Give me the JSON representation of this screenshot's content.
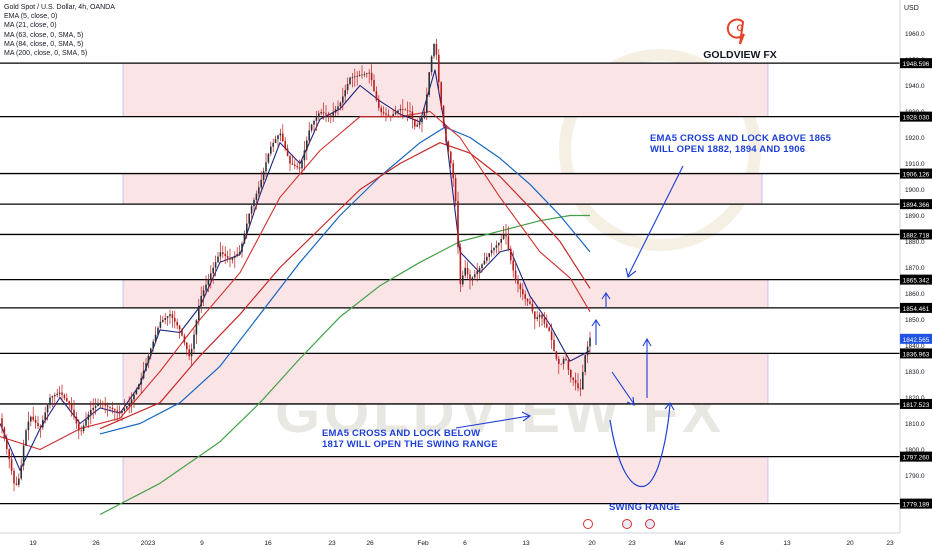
{
  "legend": {
    "title": "Gold Spot / U.S. Dollar, 4h, OANDA",
    "lines": [
      "EMA (5, close, 0)",
      "MA (21, close, 0)",
      "MA (63, close, 0, SMA, 5)",
      "MA (84, close, 0, SMA, 5)",
      "MA (200, close, 0, SMA, 5)"
    ]
  },
  "logo": {
    "text": "GOLDVIEW FX",
    "mark_text": "G",
    "color": "#e8402a"
  },
  "watermark": "GOLDVIEW FX",
  "annotations": {
    "upper": [
      "EMA5 CROSS AND LOCK ABOVE 1865",
      "WILL OPEN  1882, 1894 AND 1906"
    ],
    "lower": [
      "EMA5 CROSS AND LOCK BELOW",
      "1817 WILL OPEN THE SWING RANGE"
    ],
    "swing": "SWING RANGE"
  },
  "colors": {
    "ema5": "#1a237e",
    "ma21": "#d32f2f",
    "ma63": "#1565c0",
    "ma84": "#c62828",
    "ma200": "#43a047",
    "annotation": "#1e3fd6",
    "zone": "#fbe4e6",
    "zone_border": "#4a6cf7",
    "candle": "#b71c1c"
  },
  "chart_data": {
    "type": "candlestick",
    "symbol": "Gold Spot / U.S. Dollar",
    "timeframe": "4h",
    "source": "OANDA",
    "currency_label": "USD",
    "y_axis": {
      "min": 1774,
      "max": 1968,
      "ticks": [
        1790,
        1800,
        1810,
        1820,
        1830,
        1840,
        1850,
        1860,
        1870,
        1880,
        1890,
        1900,
        1910,
        1920,
        1930,
        1940,
        1950,
        1960
      ]
    },
    "x_ticks": [
      "19",
      "26",
      "2023",
      "9",
      "16",
      "23",
      "26",
      "Feb",
      "6",
      "13",
      "20",
      "23",
      "Mar",
      "6",
      "13",
      "20",
      "23"
    ],
    "levels": [
      1948.596,
      1928.03,
      1906.126,
      1894.366,
      1882.718,
      1865.342,
      1854.461,
      1836.963,
      1817.523,
      1797.26,
      1779.189
    ],
    "current_price": 1842.565,
    "zones": [
      [
        1948.596,
        1928.03
      ],
      [
        1906.126,
        1894.366
      ],
      [
        1865.342,
        1854.461
      ],
      [
        1836.963,
        1817.523
      ],
      [
        1797.26,
        1779.189
      ]
    ],
    "price_path": [
      [
        0,
        1812
      ],
      [
        5,
        1803
      ],
      [
        10,
        1795
      ],
      [
        15,
        1785
      ],
      [
        20,
        1790
      ],
      [
        25,
        1806
      ],
      [
        30,
        1813
      ],
      [
        40,
        1808
      ],
      [
        50,
        1820
      ],
      [
        60,
        1822
      ],
      [
        70,
        1817
      ],
      [
        80,
        1806
      ],
      [
        90,
        1815
      ],
      [
        100,
        1818
      ],
      [
        110,
        1816
      ],
      [
        120,
        1814
      ],
      [
        130,
        1818
      ],
      [
        140,
        1826
      ],
      [
        150,
        1838
      ],
      [
        160,
        1849
      ],
      [
        170,
        1852
      ],
      [
        180,
        1846
      ],
      [
        190,
        1835
      ],
      [
        200,
        1858
      ],
      [
        210,
        1867
      ],
      [
        220,
        1876
      ],
      [
        230,
        1873
      ],
      [
        240,
        1876
      ],
      [
        250,
        1892
      ],
      [
        260,
        1902
      ],
      [
        270,
        1916
      ],
      [
        280,
        1922
      ],
      [
        290,
        1910
      ],
      [
        300,
        1908
      ],
      [
        310,
        1924
      ],
      [
        320,
        1930
      ],
      [
        330,
        1928
      ],
      [
        340,
        1933
      ],
      [
        350,
        1943
      ],
      [
        360,
        1944
      ],
      [
        370,
        1945
      ],
      [
        375,
        1936
      ],
      [
        380,
        1930
      ],
      [
        390,
        1928
      ],
      [
        400,
        1931
      ],
      [
        410,
        1930
      ],
      [
        415,
        1924
      ],
      [
        420,
        1926
      ],
      [
        425,
        1930
      ],
      [
        430,
        1948
      ],
      [
        435,
        1958
      ],
      [
        440,
        1936
      ],
      [
        445,
        1920
      ],
      [
        450,
        1912
      ],
      [
        455,
        1900
      ],
      [
        460,
        1863
      ],
      [
        465,
        1870
      ],
      [
        470,
        1865
      ],
      [
        480,
        1870
      ],
      [
        490,
        1876
      ],
      [
        500,
        1880
      ],
      [
        505,
        1884
      ],
      [
        510,
        1874
      ],
      [
        515,
        1866
      ],
      [
        520,
        1862
      ],
      [
        525,
        1858
      ],
      [
        530,
        1856
      ],
      [
        535,
        1850
      ],
      [
        540,
        1852
      ],
      [
        545,
        1848
      ],
      [
        550,
        1845
      ],
      [
        555,
        1836
      ],
      [
        560,
        1832
      ],
      [
        565,
        1836
      ],
      [
        570,
        1828
      ],
      [
        575,
        1826
      ],
      [
        580,
        1822
      ],
      [
        585,
        1836
      ],
      [
        590,
        1843
      ]
    ],
    "ema5": [
      [
        0,
        1810
      ],
      [
        20,
        1792
      ],
      [
        40,
        1808
      ],
      [
        60,
        1820
      ],
      [
        80,
        1810
      ],
      [
        100,
        1816
      ],
      [
        120,
        1814
      ],
      [
        140,
        1825
      ],
      [
        160,
        1846
      ],
      [
        180,
        1845
      ],
      [
        200,
        1855
      ],
      [
        220,
        1872
      ],
      [
        240,
        1875
      ],
      [
        260,
        1898
      ],
      [
        280,
        1918
      ],
      [
        300,
        1910
      ],
      [
        320,
        1927
      ],
      [
        340,
        1931
      ],
      [
        360,
        1940
      ],
      [
        380,
        1934
      ],
      [
        400,
        1929
      ],
      [
        420,
        1926
      ],
      [
        435,
        1946
      ],
      [
        445,
        1924
      ],
      [
        460,
        1876
      ],
      [
        480,
        1868
      ],
      [
        500,
        1876
      ],
      [
        510,
        1877
      ],
      [
        530,
        1859
      ],
      [
        550,
        1848
      ],
      [
        570,
        1834
      ],
      [
        590,
        1838
      ]
    ],
    "ma21": [
      [
        0,
        1805
      ],
      [
        40,
        1800
      ],
      [
        80,
        1808
      ],
      [
        120,
        1812
      ],
      [
        160,
        1830
      ],
      [
        200,
        1850
      ],
      [
        240,
        1868
      ],
      [
        280,
        1897
      ],
      [
        320,
        1915
      ],
      [
        360,
        1928
      ],
      [
        400,
        1928
      ],
      [
        430,
        1930
      ],
      [
        460,
        1920
      ],
      [
        500,
        1897
      ],
      [
        540,
        1876
      ],
      [
        570,
        1866
      ],
      [
        590,
        1853
      ]
    ],
    "ma63": [
      [
        100,
        1806
      ],
      [
        140,
        1810
      ],
      [
        180,
        1818
      ],
      [
        220,
        1832
      ],
      [
        260,
        1852
      ],
      [
        300,
        1872
      ],
      [
        340,
        1890
      ],
      [
        380,
        1905
      ],
      [
        420,
        1918
      ],
      [
        445,
        1924
      ],
      [
        470,
        1920
      ],
      [
        500,
        1912
      ],
      [
        530,
        1902
      ],
      [
        560,
        1890
      ],
      [
        590,
        1876
      ]
    ],
    "ma84": [
      [
        100,
        1808
      ],
      [
        160,
        1818
      ],
      [
        200,
        1836
      ],
      [
        240,
        1852
      ],
      [
        280,
        1870
      ],
      [
        320,
        1885
      ],
      [
        360,
        1900
      ],
      [
        400,
        1910
      ],
      [
        440,
        1918
      ],
      [
        470,
        1914
      ],
      [
        500,
        1905
      ],
      [
        530,
        1893
      ],
      [
        560,
        1880
      ],
      [
        590,
        1862
      ]
    ],
    "ma200": [
      [
        100,
        1775
      ],
      [
        160,
        1787
      ],
      [
        220,
        1803
      ],
      [
        260,
        1818
      ],
      [
        300,
        1835
      ],
      [
        340,
        1851
      ],
      [
        380,
        1863
      ],
      [
        420,
        1872
      ],
      [
        460,
        1880
      ],
      [
        500,
        1884
      ],
      [
        540,
        1888
      ],
      [
        570,
        1890
      ],
      [
        590,
        1890
      ]
    ]
  }
}
